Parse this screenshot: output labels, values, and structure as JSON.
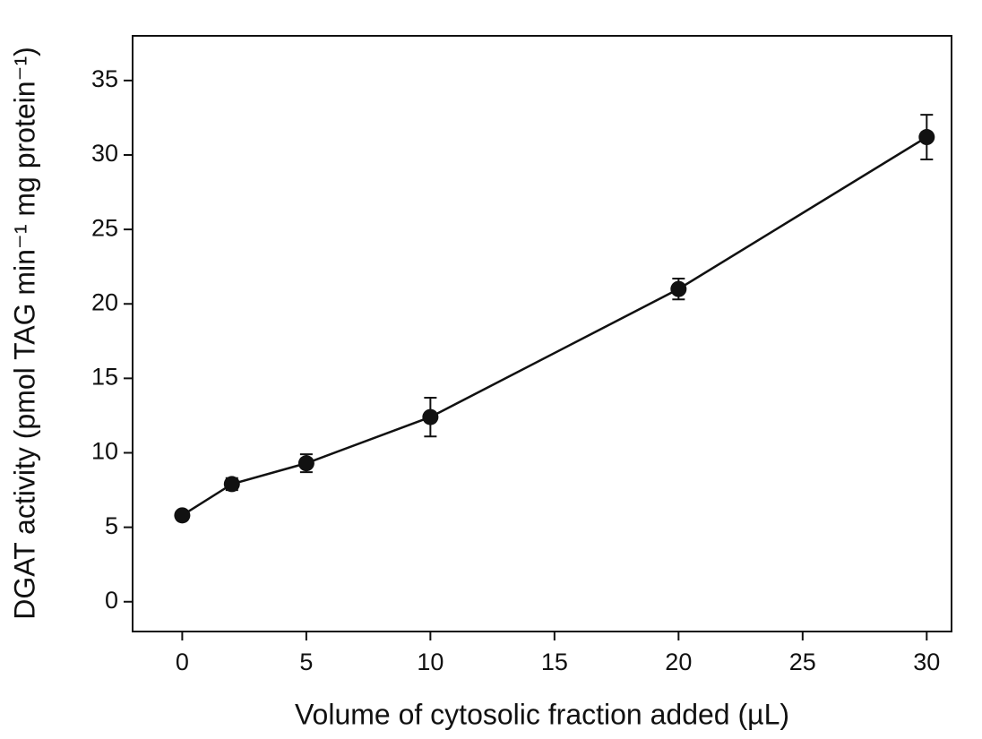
{
  "chart_data": {
    "type": "line",
    "x_label": "Volume of cytosolic fraction added (µL)",
    "y_label": "DGAT activity (pmol TAG min⁻¹ mg protein⁻¹)",
    "x": [
      0,
      2,
      5,
      10,
      20,
      30
    ],
    "values": [
      5.8,
      7.9,
      9.3,
      12.4,
      21.0,
      31.2
    ],
    "errors": [
      0.2,
      0.4,
      0.6,
      1.3,
      0.7,
      1.5
    ],
    "color": "#111111",
    "xlim": [
      -2,
      31
    ],
    "xticks": [
      0,
      5,
      10,
      15,
      20,
      25,
      30
    ],
    "ylim": [
      -2,
      38
    ],
    "yticks": [
      0,
      5,
      10,
      15,
      20,
      25,
      30,
      35
    ],
    "grid": false
  }
}
